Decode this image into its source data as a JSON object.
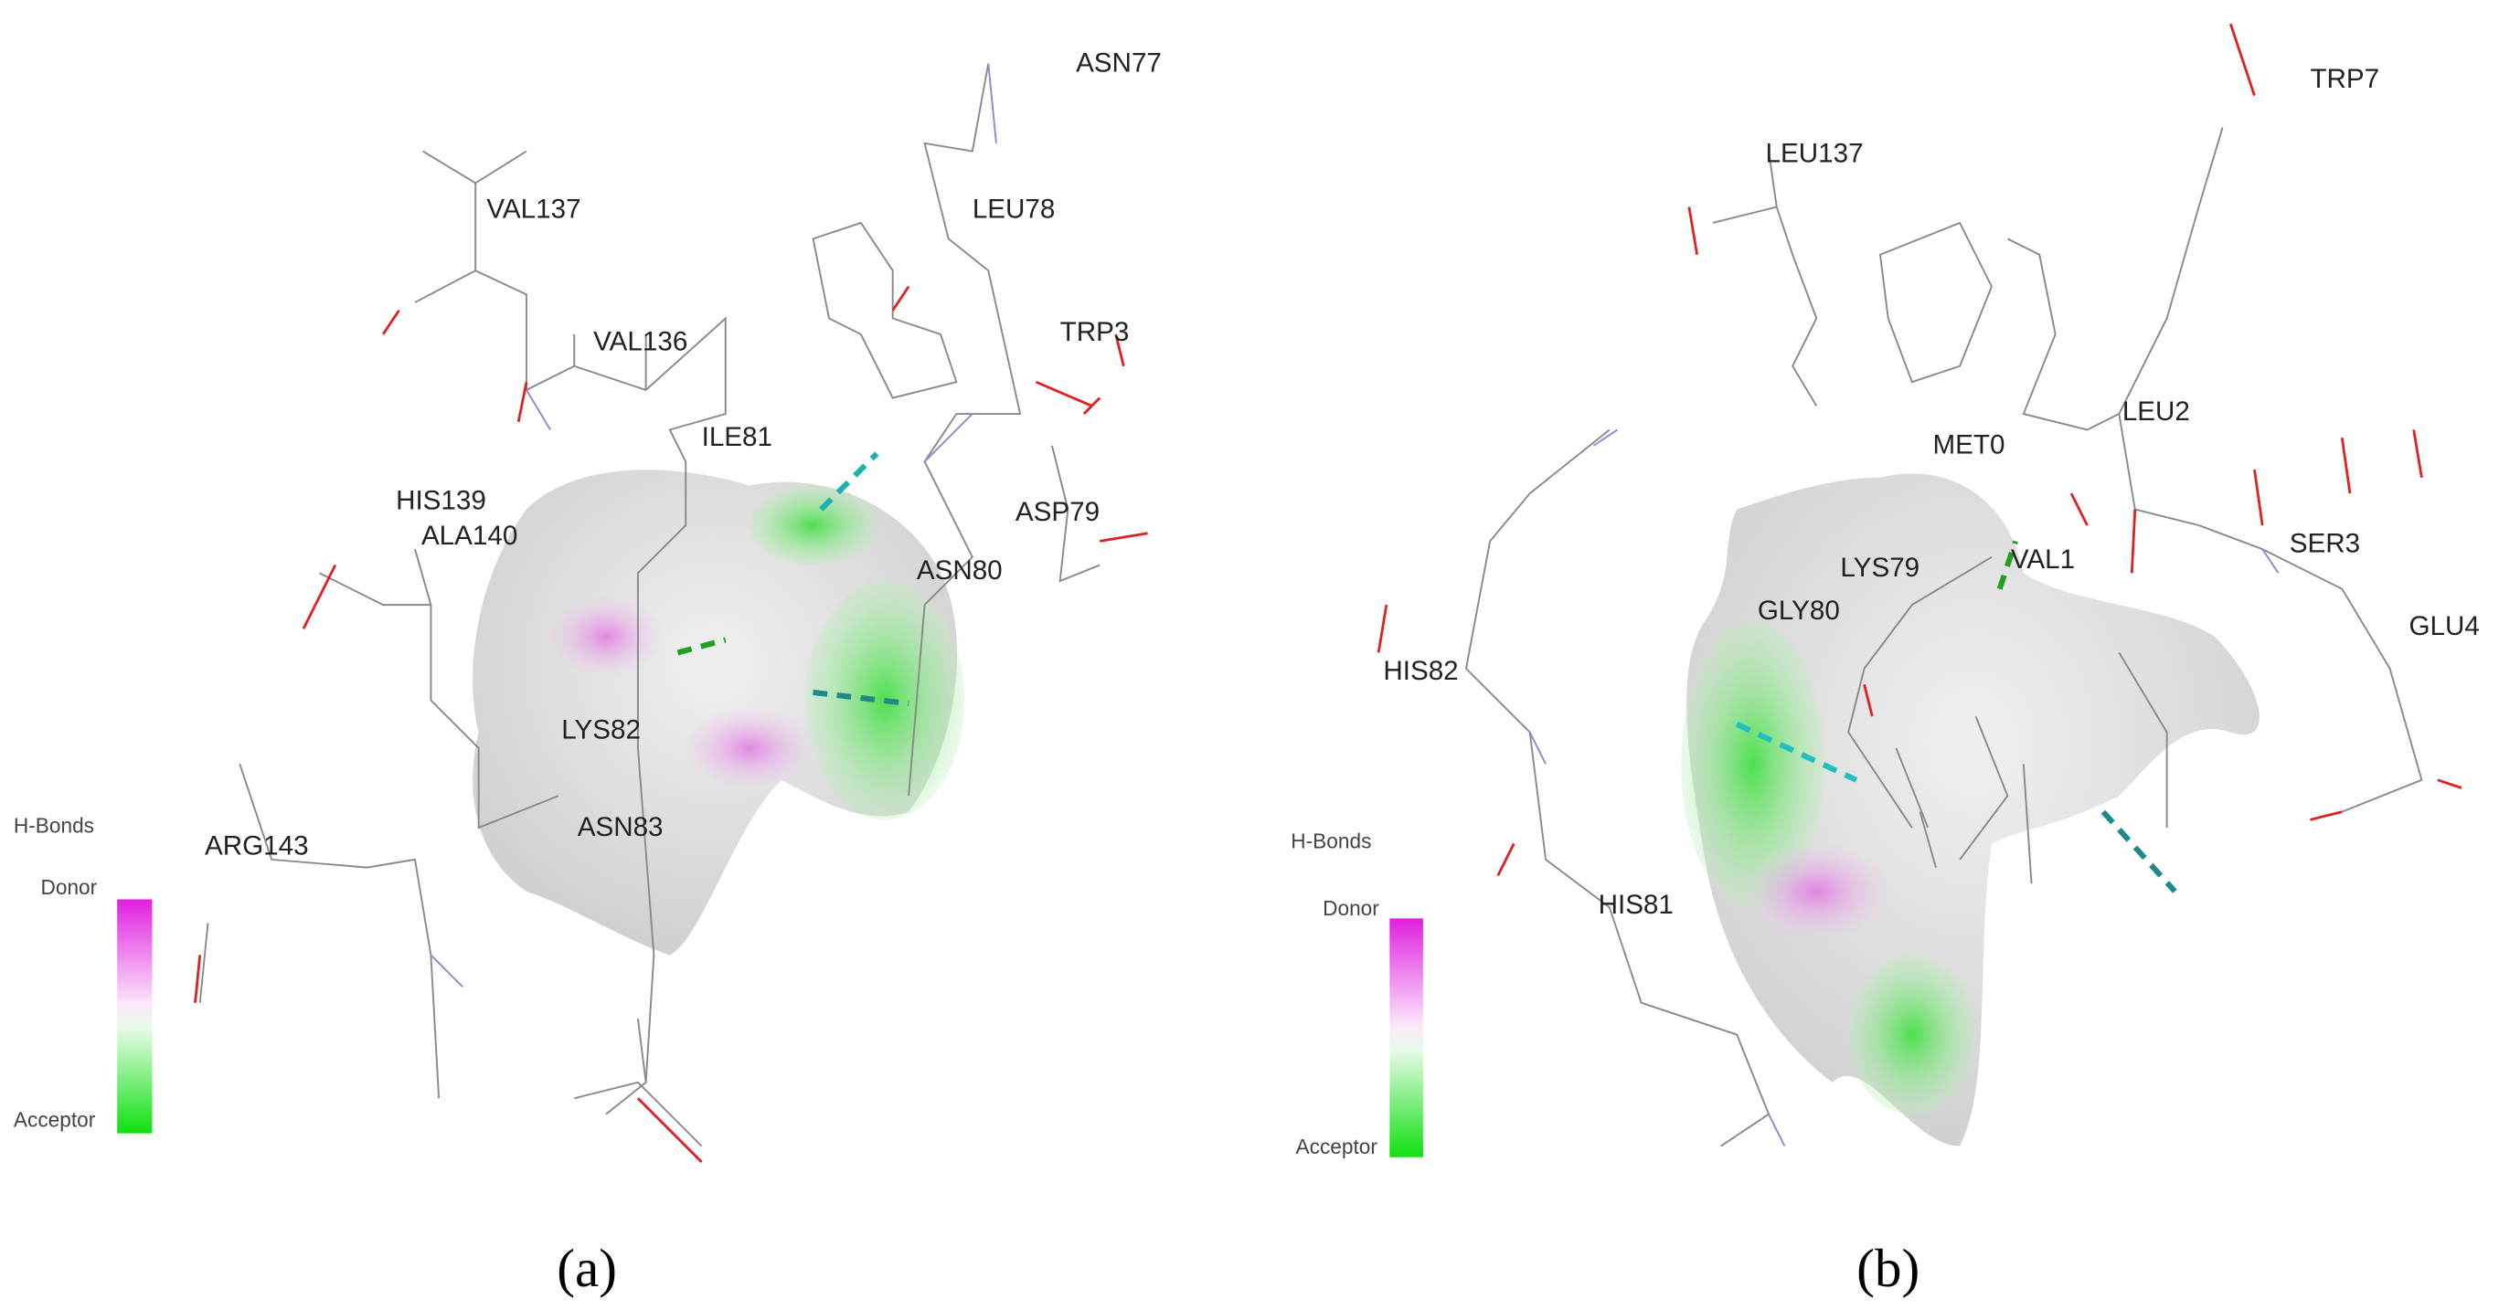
{
  "panels": [
    {
      "caption": "(a)",
      "residues": [
        "ASN77",
        "VAL137",
        "LEU78",
        "VAL136",
        "TRP3",
        "ILE81",
        "HIS139",
        "ALA140",
        "ASP79",
        "ASN80",
        "LYS82",
        "ASN83",
        "ARG143"
      ],
      "legend": {
        "title": "H-Bonds",
        "top": "Donor",
        "bottom": "Acceptor"
      }
    },
    {
      "caption": "(b)",
      "residues": [
        "TRP7",
        "LEU137",
        "MET0",
        "LEU2",
        "VAL1",
        "LYS79",
        "SER3",
        "GLY80",
        "HIS82",
        "GLU4",
        "HIS81"
      ],
      "legend": {
        "title": "H-Bonds",
        "top": "Donor",
        "bottom": "Acceptor"
      }
    }
  ]
}
